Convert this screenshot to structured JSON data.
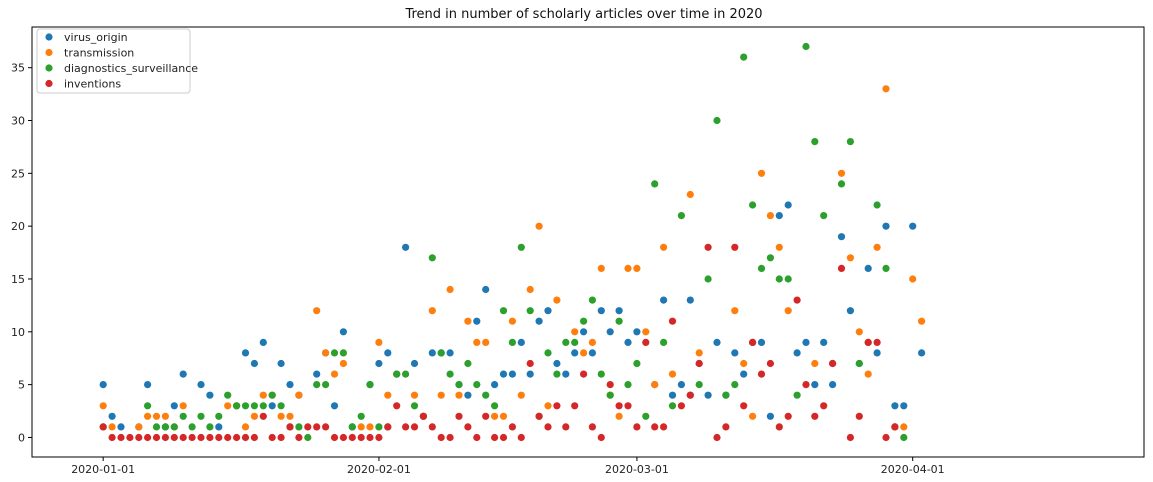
{
  "chart_data": {
    "type": "scatter",
    "title": "Trend in number of scholarly articles over time in 2020",
    "xlabel": "",
    "ylabel": "",
    "x_start": "2020-01-01",
    "x_range": [
      "2019-12-24",
      "2020-04-27"
    ],
    "ylim": [
      -1.85,
      38.85
    ],
    "x_ticks": [
      {
        "date": "2020-01-01",
        "label": "2020-01-01"
      },
      {
        "date": "2020-02-01",
        "label": "2020-02-01"
      },
      {
        "date": "2020-03-01",
        "label": "2020-03-01"
      },
      {
        "date": "2020-04-01",
        "label": "2020-04-01"
      }
    ],
    "y_ticks": [
      0,
      5,
      10,
      15,
      20,
      25,
      30,
      35
    ],
    "grid": false,
    "legend": "upper-left",
    "series": [
      {
        "name": "virus_origin",
        "color": "#1f77b4",
        "points": [
          [
            0,
            5
          ],
          [
            1,
            2
          ],
          [
            2,
            1
          ],
          [
            4,
            1
          ],
          [
            5,
            5
          ],
          [
            7,
            1
          ],
          [
            8,
            3
          ],
          [
            9,
            6
          ],
          [
            11,
            5
          ],
          [
            12,
            4
          ],
          [
            13,
            1
          ],
          [
            15,
            3
          ],
          [
            16,
            8
          ],
          [
            17,
            7
          ],
          [
            18,
            9
          ],
          [
            19,
            3
          ],
          [
            20,
            7
          ],
          [
            21,
            5
          ],
          [
            22,
            4
          ],
          [
            24,
            6
          ],
          [
            25,
            8
          ],
          [
            26,
            3
          ],
          [
            27,
            10
          ],
          [
            28,
            1
          ],
          [
            30,
            5
          ],
          [
            31,
            7
          ],
          [
            32,
            8
          ],
          [
            33,
            6
          ],
          [
            34,
            18
          ],
          [
            35,
            7
          ],
          [
            36,
            2
          ],
          [
            37,
            8
          ],
          [
            38,
            8
          ],
          [
            39,
            8
          ],
          [
            40,
            5
          ],
          [
            41,
            4
          ],
          [
            42,
            11
          ],
          [
            43,
            14
          ],
          [
            44,
            5
          ],
          [
            45,
            6
          ],
          [
            46,
            6
          ],
          [
            47,
            9
          ],
          [
            48,
            6
          ],
          [
            49,
            11
          ],
          [
            50,
            12
          ],
          [
            51,
            7
          ],
          [
            52,
            6
          ],
          [
            53,
            8
          ],
          [
            54,
            10
          ],
          [
            55,
            8
          ],
          [
            56,
            12
          ],
          [
            57,
            10
          ],
          [
            58,
            12
          ],
          [
            59,
            9
          ],
          [
            60,
            10
          ],
          [
            62,
            5
          ],
          [
            63,
            13
          ],
          [
            64,
            4
          ],
          [
            65,
            5
          ],
          [
            66,
            13
          ],
          [
            67,
            7
          ],
          [
            68,
            4
          ],
          [
            69,
            9
          ],
          [
            70,
            4
          ],
          [
            71,
            8
          ],
          [
            72,
            6
          ],
          [
            73,
            9
          ],
          [
            74,
            9
          ],
          [
            75,
            2
          ],
          [
            76,
            21
          ],
          [
            77,
            22
          ],
          [
            78,
            8
          ],
          [
            79,
            9
          ],
          [
            80,
            5
          ],
          [
            81,
            9
          ],
          [
            82,
            5
          ],
          [
            83,
            19
          ],
          [
            84,
            12
          ],
          [
            85,
            7
          ],
          [
            86,
            16
          ],
          [
            87,
            8
          ],
          [
            88,
            20
          ],
          [
            89,
            3
          ],
          [
            90,
            3
          ],
          [
            91,
            20
          ],
          [
            92,
            8
          ]
        ]
      },
      {
        "name": "transmission",
        "color": "#ff7f0e",
        "points": [
          [
            0,
            3
          ],
          [
            1,
            1
          ],
          [
            4,
            1
          ],
          [
            5,
            2
          ],
          [
            6,
            2
          ],
          [
            7,
            2
          ],
          [
            8,
            1
          ],
          [
            9,
            3
          ],
          [
            14,
            3
          ],
          [
            15,
            3
          ],
          [
            16,
            1
          ],
          [
            17,
            2
          ],
          [
            18,
            4
          ],
          [
            19,
            4
          ],
          [
            20,
            2
          ],
          [
            21,
            2
          ],
          [
            22,
            4
          ],
          [
            24,
            12
          ],
          [
            25,
            8
          ],
          [
            26,
            6
          ],
          [
            27,
            7
          ],
          [
            29,
            1
          ],
          [
            30,
            1
          ],
          [
            31,
            9
          ],
          [
            32,
            4
          ],
          [
            33,
            6
          ],
          [
            35,
            4
          ],
          [
            36,
            2
          ],
          [
            37,
            12
          ],
          [
            38,
            4
          ],
          [
            39,
            14
          ],
          [
            40,
            4
          ],
          [
            41,
            11
          ],
          [
            42,
            9
          ],
          [
            43,
            9
          ],
          [
            44,
            2
          ],
          [
            45,
            2
          ],
          [
            46,
            11
          ],
          [
            47,
            4
          ],
          [
            48,
            14
          ],
          [
            49,
            20
          ],
          [
            50,
            3
          ],
          [
            51,
            13
          ],
          [
            53,
            10
          ],
          [
            54,
            8
          ],
          [
            55,
            9
          ],
          [
            56,
            16
          ],
          [
            57,
            4
          ],
          [
            58,
            2
          ],
          [
            59,
            16
          ],
          [
            60,
            16
          ],
          [
            61,
            10
          ],
          [
            62,
            5
          ],
          [
            63,
            18
          ],
          [
            64,
            6
          ],
          [
            66,
            23
          ],
          [
            67,
            8
          ],
          [
            71,
            12
          ],
          [
            72,
            7
          ],
          [
            73,
            2
          ],
          [
            74,
            25
          ],
          [
            75,
            21
          ],
          [
            76,
            18
          ],
          [
            77,
            12
          ],
          [
            80,
            7
          ],
          [
            83,
            25
          ],
          [
            84,
            17
          ],
          [
            85,
            10
          ],
          [
            86,
            6
          ],
          [
            87,
            18
          ],
          [
            88,
            33
          ],
          [
            89,
            1
          ],
          [
            90,
            1
          ],
          [
            91,
            15
          ],
          [
            92,
            11
          ]
        ]
      },
      {
        "name": "diagnostics_surveillance",
        "color": "#2ca02c",
        "points": [
          [
            0,
            1
          ],
          [
            5,
            3
          ],
          [
            6,
            1
          ],
          [
            7,
            1
          ],
          [
            8,
            1
          ],
          [
            9,
            2
          ],
          [
            10,
            1
          ],
          [
            11,
            2
          ],
          [
            12,
            1
          ],
          [
            13,
            2
          ],
          [
            14,
            4
          ],
          [
            15,
            3
          ],
          [
            16,
            3
          ],
          [
            17,
            3
          ],
          [
            18,
            3
          ],
          [
            19,
            4
          ],
          [
            20,
            3
          ],
          [
            21,
            1
          ],
          [
            22,
            1
          ],
          [
            23,
            0
          ],
          [
            24,
            5
          ],
          [
            25,
            5
          ],
          [
            26,
            8
          ],
          [
            27,
            8
          ],
          [
            28,
            1
          ],
          [
            29,
            2
          ],
          [
            30,
            5
          ],
          [
            31,
            1
          ],
          [
            32,
            1
          ],
          [
            33,
            6
          ],
          [
            34,
            6
          ],
          [
            35,
            3
          ],
          [
            36,
            2
          ],
          [
            37,
            17
          ],
          [
            38,
            8
          ],
          [
            39,
            6
          ],
          [
            40,
            5
          ],
          [
            41,
            7
          ],
          [
            42,
            5
          ],
          [
            43,
            4
          ],
          [
            44,
            3
          ],
          [
            45,
            12
          ],
          [
            46,
            9
          ],
          [
            47,
            18
          ],
          [
            48,
            12
          ],
          [
            49,
            2
          ],
          [
            50,
            8
          ],
          [
            51,
            6
          ],
          [
            52,
            9
          ],
          [
            53,
            9
          ],
          [
            54,
            11
          ],
          [
            55,
            13
          ],
          [
            56,
            6
          ],
          [
            57,
            4
          ],
          [
            58,
            11
          ],
          [
            59,
            5
          ],
          [
            60,
            7
          ],
          [
            61,
            2
          ],
          [
            62,
            24
          ],
          [
            63,
            9
          ],
          [
            64,
            3
          ],
          [
            65,
            21
          ],
          [
            66,
            4
          ],
          [
            67,
            5
          ],
          [
            68,
            15
          ],
          [
            69,
            30
          ],
          [
            70,
            4
          ],
          [
            71,
            5
          ],
          [
            72,
            36
          ],
          [
            73,
            22
          ],
          [
            74,
            16
          ],
          [
            75,
            17
          ],
          [
            76,
            15
          ],
          [
            77,
            15
          ],
          [
            78,
            4
          ],
          [
            79,
            37
          ],
          [
            80,
            28
          ],
          [
            81,
            21
          ],
          [
            82,
            7
          ],
          [
            83,
            24
          ],
          [
            84,
            28
          ],
          [
            85,
            7
          ],
          [
            86,
            9
          ],
          [
            87,
            22
          ],
          [
            88,
            16
          ],
          [
            89,
            1
          ],
          [
            90,
            0
          ]
        ]
      },
      {
        "name": "inventions",
        "color": "#d62728",
        "points": [
          [
            0,
            1
          ],
          [
            1,
            0
          ],
          [
            2,
            0
          ],
          [
            3,
            0
          ],
          [
            4,
            0
          ],
          [
            5,
            0
          ],
          [
            6,
            0
          ],
          [
            7,
            0
          ],
          [
            8,
            0
          ],
          [
            9,
            0
          ],
          [
            10,
            0
          ],
          [
            11,
            0
          ],
          [
            12,
            0
          ],
          [
            13,
            0
          ],
          [
            14,
            0
          ],
          [
            15,
            0
          ],
          [
            16,
            0
          ],
          [
            17,
            0
          ],
          [
            18,
            2
          ],
          [
            19,
            0
          ],
          [
            20,
            0
          ],
          [
            21,
            1
          ],
          [
            22,
            0
          ],
          [
            23,
            1
          ],
          [
            24,
            1
          ],
          [
            25,
            1
          ],
          [
            26,
            0
          ],
          [
            27,
            0
          ],
          [
            28,
            0
          ],
          [
            29,
            0
          ],
          [
            30,
            0
          ],
          [
            31,
            0
          ],
          [
            32,
            1
          ],
          [
            33,
            3
          ],
          [
            34,
            1
          ],
          [
            35,
            1
          ],
          [
            36,
            2
          ],
          [
            37,
            1
          ],
          [
            38,
            0
          ],
          [
            39,
            0
          ],
          [
            40,
            2
          ],
          [
            41,
            1
          ],
          [
            42,
            0
          ],
          [
            43,
            2
          ],
          [
            44,
            0
          ],
          [
            45,
            0
          ],
          [
            46,
            1
          ],
          [
            47,
            0
          ],
          [
            48,
            7
          ],
          [
            49,
            2
          ],
          [
            50,
            1
          ],
          [
            51,
            3
          ],
          [
            52,
            1
          ],
          [
            53,
            3
          ],
          [
            54,
            6
          ],
          [
            55,
            1
          ],
          [
            56,
            0
          ],
          [
            57,
            5
          ],
          [
            58,
            3
          ],
          [
            59,
            3
          ],
          [
            60,
            1
          ],
          [
            61,
            9
          ],
          [
            62,
            1
          ],
          [
            63,
            1
          ],
          [
            64,
            11
          ],
          [
            65,
            3
          ],
          [
            66,
            4
          ],
          [
            67,
            7
          ],
          [
            68,
            18
          ],
          [
            69,
            0
          ],
          [
            70,
            1
          ],
          [
            71,
            18
          ],
          [
            72,
            3
          ],
          [
            73,
            9
          ],
          [
            74,
            6
          ],
          [
            75,
            7
          ],
          [
            76,
            1
          ],
          [
            77,
            2
          ],
          [
            78,
            13
          ],
          [
            79,
            5
          ],
          [
            80,
            2
          ],
          [
            81,
            3
          ],
          [
            82,
            7
          ],
          [
            83,
            16
          ],
          [
            84,
            0
          ],
          [
            85,
            2
          ],
          [
            86,
            9
          ],
          [
            87,
            9
          ],
          [
            88,
            0
          ],
          [
            89,
            1
          ]
        ]
      }
    ]
  }
}
